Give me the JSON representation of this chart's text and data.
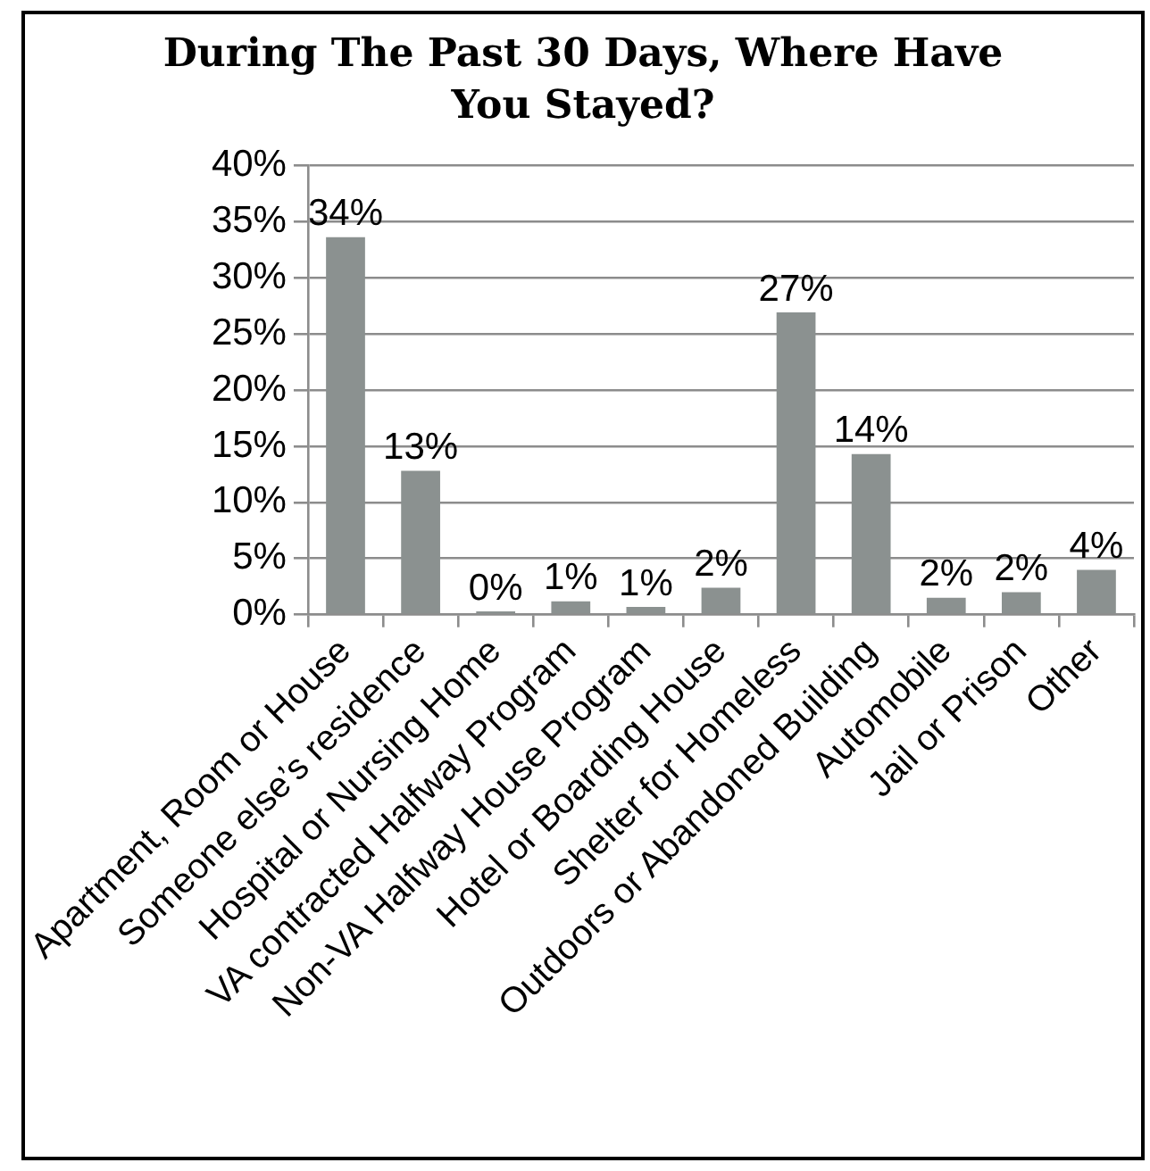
{
  "chart_data": {
    "type": "bar",
    "title": "During The Past 30 Days, Where Have You Stayed?",
    "categories": [
      "Apartment, Room or House",
      "Someone else’s residence",
      "Hospital or Nursing Home",
      "VA contracted Halfway Program",
      "Non-VA Halfway House Program",
      "Hotel or Boarding House",
      "Shelter for Homeless",
      "Outdoors or Abandoned Building",
      "Automobile",
      "Jail or Prison",
      "Other"
    ],
    "values": [
      33.6,
      12.8,
      0.3,
      1.2,
      0.7,
      2.4,
      26.9,
      14.3,
      1.5,
      2.0,
      4.0
    ],
    "value_labels": [
      "34%",
      "13%",
      "0%",
      "1%",
      "1%",
      "2%",
      "27%",
      "14%",
      "2%",
      "2%",
      "4%"
    ],
    "color": "#8b9190",
    "ylim": [
      0,
      40
    ],
    "yticks": [
      {
        "value": 0,
        "label": "0%"
      },
      {
        "value": 5,
        "label": "5%"
      },
      {
        "value": 10,
        "label": "10%"
      },
      {
        "value": 15,
        "label": "15%"
      },
      {
        "value": 20,
        "label": "20%"
      },
      {
        "value": 25,
        "label": "25%"
      },
      {
        "value": 30,
        "label": "30%"
      },
      {
        "value": 35,
        "label": "35%"
      },
      {
        "value": 40,
        "label": "40%"
      }
    ],
    "grid": "y"
  }
}
